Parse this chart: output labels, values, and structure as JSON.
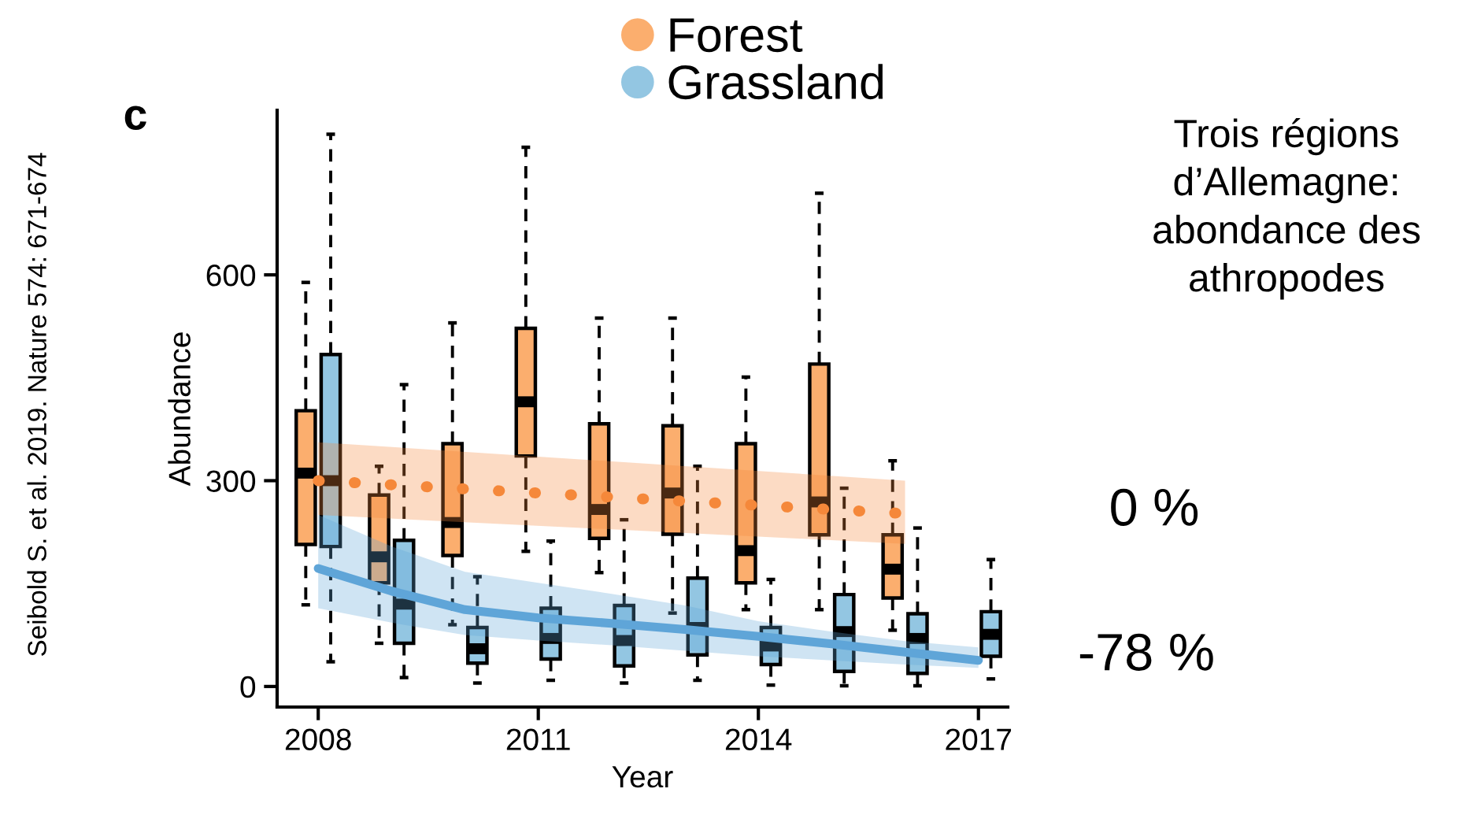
{
  "chart_data": {
    "type": "box",
    "title": "Trois régions\nd’Allemagne:\nabondance des\nathropodes",
    "xlabel": "Year",
    "ylabel": "Abundance",
    "xlim": [
      2007.44,
      2017.4
    ],
    "ylim": [
      -30,
      840
    ],
    "xticks": [
      2008,
      2011,
      2014,
      2017
    ],
    "yticks": [
      0,
      300,
      600
    ],
    "grid": false,
    "legend": "top",
    "annotations": [
      "Seibold S. et al. 2019. Nature 574: 671-674",
      "c",
      "0 %",
      "-78 %"
    ],
    "series": [
      {
        "name": "Forest",
        "color": "#fbae6e",
        "x": [
          2007.83,
          2008.83,
          2009.83,
          2010.83,
          2011.83,
          2012.83,
          2013.83,
          2014.83,
          2015.83
        ],
        "boxes": [
          {
            "low": 119,
            "q1": 207,
            "median": 311,
            "q3": 402,
            "high": 589
          },
          {
            "low": 63,
            "q1": 151,
            "median": 189,
            "q3": 279,
            "high": 321
          },
          {
            "low": 90,
            "q1": 191,
            "median": 239,
            "q3": 354,
            "high": 530
          },
          {
            "low": 197,
            "q1": 336,
            "median": 415,
            "q3": 522,
            "high": 786
          },
          {
            "low": 166,
            "q1": 216,
            "median": 258,
            "q3": 383,
            "high": 537
          },
          {
            "low": 107,
            "q1": 222,
            "median": 282,
            "q3": 380,
            "high": 537
          },
          {
            "low": 112,
            "q1": 151,
            "median": 198,
            "q3": 354,
            "high": 451
          },
          {
            "low": 112,
            "q1": 221,
            "median": 269,
            "q3": 470,
            "high": 719
          },
          {
            "low": 82,
            "q1": 129,
            "median": 171,
            "q3": 221,
            "high": 329
          }
        ]
      },
      {
        "name": "Grassland",
        "color": "#93c6e2",
        "x": [
          2008.17,
          2009.17,
          2010.17,
          2011.17,
          2012.17,
          2013.17,
          2014.17,
          2015.17,
          2016.17,
          2017.17
        ],
        "boxes": [
          {
            "low": 36,
            "q1": 204,
            "median": 300,
            "q3": 484,
            "high": 805
          },
          {
            "low": 13,
            "q1": 63,
            "median": 120,
            "q3": 213,
            "high": 440
          },
          {
            "low": 5,
            "q1": 34,
            "median": 55,
            "q3": 86,
            "high": 160
          },
          {
            "low": 9,
            "q1": 40,
            "median": 70,
            "q3": 114,
            "high": 212
          },
          {
            "low": 5,
            "q1": 30,
            "median": 67,
            "q3": 118,
            "high": 243
          },
          {
            "low": 9,
            "q1": 46,
            "median": 86,
            "q3": 158,
            "high": 321
          },
          {
            "low": 2,
            "q1": 32,
            "median": 59,
            "q3": 86,
            "high": 156
          },
          {
            "low": 1,
            "q1": 22,
            "median": 80,
            "q3": 134,
            "high": 289
          },
          {
            "low": 1,
            "q1": 19,
            "median": 70,
            "q3": 106,
            "high": 231
          },
          {
            "low": 11,
            "q1": 44,
            "median": 76,
            "q3": 109,
            "high": 185
          }
        ]
      },
      {
        "type": "line",
        "color": "#f5883a",
        "line_style": "dotted",
        "x": [
          2008,
          2016
        ],
        "values": [
          300,
          252
        ],
        "lower": [
          250,
          208
        ],
        "upper": [
          356,
          300
        ]
      },
      {
        "type": "line",
        "color": "#5fa5d8",
        "line_style": "solid",
        "x": [
          2008,
          2009,
          2010,
          2011,
          2012,
          2013,
          2014,
          2015,
          2016,
          2017
        ],
        "values": [
          172,
          139,
          112,
          100,
          92,
          83,
          73,
          62,
          50,
          38
        ],
        "lower": [
          114,
          93,
          75,
          67,
          60,
          52,
          44,
          38,
          32,
          27
        ],
        "upper": [
          250,
          204,
          167,
          151,
          135,
          118,
          95,
          80,
          66,
          57
        ]
      }
    ]
  }
}
